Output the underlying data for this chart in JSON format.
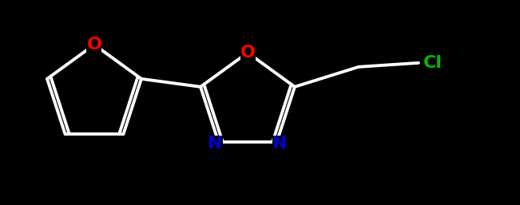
{
  "background_color": "#000000",
  "bond_color": "#ffffff",
  "furan_O_color": "#ff0000",
  "oxadiazole_O_color": "#ff0000",
  "N_color": "#0000cc",
  "Cl_color": "#00bb00",
  "furan_O_label": "O",
  "oxadiazole_O_label": "O",
  "N1_label": "N",
  "N2_label": "N",
  "Cl_label": "Cl",
  "figsize": [
    6.51,
    2.57
  ],
  "dpi": 100
}
